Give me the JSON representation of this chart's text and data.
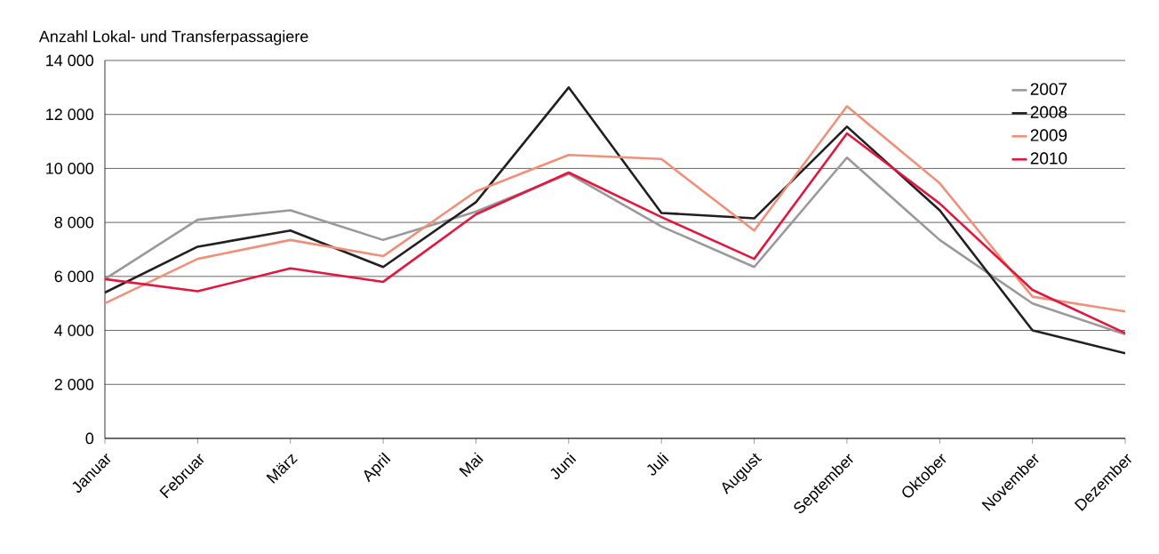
{
  "chart_data": {
    "type": "line",
    "ylabel": "Anzahl Lokal- und Transferpassagiere",
    "categories": [
      "Januar",
      "Februar",
      "März",
      "April",
      "Mai",
      "Juni",
      "Juli",
      "August",
      "September",
      "Oktober",
      "November",
      "Dezember"
    ],
    "series": [
      {
        "name": "2007",
        "color": "#999999",
        "values": [
          5900,
          8100,
          8450,
          7350,
          8400,
          9800,
          7850,
          6350,
          10400,
          7350,
          5000,
          3850
        ]
      },
      {
        "name": "2008",
        "color": "#231f20",
        "values": [
          5400,
          7100,
          7700,
          6350,
          8750,
          13000,
          8350,
          8150,
          11550,
          8450,
          4000,
          3150
        ]
      },
      {
        "name": "2009",
        "color": "#f0907a",
        "values": [
          5000,
          6650,
          7350,
          6750,
          9150,
          10500,
          10350,
          7700,
          12300,
          9450,
          5250,
          4700
        ]
      },
      {
        "name": "2010",
        "color": "#e3173e",
        "values": [
          5900,
          5450,
          6300,
          5800,
          8300,
          9850,
          8200,
          6650,
          11300,
          8700,
          5500,
          3900
        ]
      }
    ],
    "ylim": [
      0,
      14000
    ],
    "yticks": [
      0,
      {
        "value": 2000,
        "label": "2 000"
      },
      {
        "value": 4000,
        "label": "4 000"
      },
      {
        "value": 6000,
        "label": "6 000"
      },
      {
        "value": 8000,
        "label": "8 000"
      },
      {
        "value": 10000,
        "label": "10 000"
      },
      {
        "value": 12000,
        "label": "12 000"
      },
      {
        "value": 14000,
        "label": "14 000"
      }
    ],
    "grid": "y",
    "legend": "top right",
    "marker": "none",
    "line_style": "solid"
  }
}
